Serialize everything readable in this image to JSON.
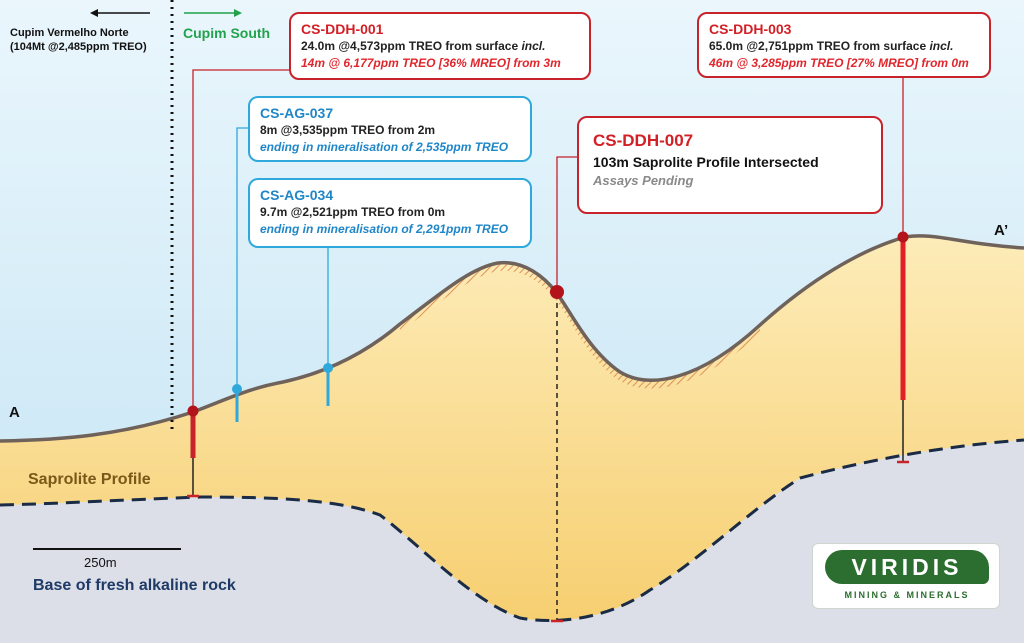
{
  "header": {
    "north_arrow": "←",
    "north_label_1": "Cupim Vermelho Norte",
    "north_label_2": "(104Mt @2,485ppm TREO)",
    "south_arrow": "→",
    "south_label": "Cupim South"
  },
  "section": {
    "start_label": "A",
    "end_label": "A’"
  },
  "callouts": {
    "ddh001": {
      "title": "CS-DDH-001",
      "line1": "24.0m @4,573ppm TREO from surface",
      "line1_suffix": "incl.",
      "line2": "14m @ 6,177ppm TREO [36% MREO] from 3m"
    },
    "ag037": {
      "title": "CS-AG-037",
      "line1": "8m @3,535ppm TREO from 2m",
      "line2": "ending in mineralisation of 2,535ppm TREO"
    },
    "ag034": {
      "title": "CS-AG-034",
      "line1": "9.7m @2,521ppm TREO from 0m",
      "line2": "ending in mineralisation of 2,291ppm TREO"
    },
    "ddh007": {
      "title": "CS-DDH-007",
      "line1": "103m Saprolite Profile Intersected",
      "line2": "Assays Pending"
    },
    "ddh003": {
      "title": "CS-DDH-003",
      "line1": "65.0m @2,751ppm TREO from surface",
      "line1_suffix": "incl.",
      "line2": "46m @ 3,285ppm TREO [27% MREO] from 0m"
    }
  },
  "legend": {
    "saprolite_label": "Saprolite Profile",
    "scale_label": "250m",
    "base_label": "Base of fresh alkaline rock"
  },
  "logo": {
    "word": "VIRIDIS",
    "sub": "MINING & MINERALS"
  },
  "colors": {
    "sky_top": "#e9f5fb",
    "sky_bottom": "#c6e6f5",
    "saprolite_top": "#fde9b0",
    "saprolite_bottom": "#f7cf70",
    "fresh_rock": "#dcdfe8",
    "surface": "#7a6a5e",
    "drill_red": "#c8222a",
    "drill_blue": "#2fa8dc",
    "logo_green": "#2c6e2f"
  }
}
